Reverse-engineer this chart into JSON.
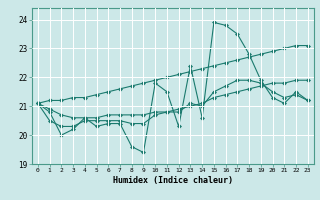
{
  "xlabel": "Humidex (Indice chaleur)",
  "bg_color": "#cce8e8",
  "grid_color": "#ffffff",
  "line_color": "#1a7a6e",
  "xlim": [
    -0.5,
    23.5
  ],
  "ylim": [
    19.0,
    24.4
  ],
  "yticks": [
    19,
    20,
    21,
    22,
    23,
    24
  ],
  "xticks": [
    0,
    1,
    2,
    3,
    4,
    5,
    6,
    7,
    8,
    9,
    10,
    11,
    12,
    13,
    14,
    15,
    16,
    17,
    18,
    19,
    20,
    21,
    22,
    23
  ],
  "series": [
    [
      21.1,
      20.8,
      20.0,
      20.2,
      20.6,
      20.3,
      20.4,
      20.4,
      19.6,
      19.4,
      21.8,
      21.5,
      20.3,
      22.4,
      20.6,
      23.9,
      23.8,
      23.5,
      22.8,
      21.9,
      21.3,
      21.1,
      21.5,
      21.2
    ],
    [
      21.1,
      20.5,
      20.3,
      20.3,
      20.5,
      20.5,
      20.5,
      20.5,
      20.4,
      20.4,
      20.7,
      20.8,
      20.8,
      21.1,
      21.0,
      21.5,
      21.7,
      21.9,
      21.9,
      21.8,
      21.5,
      21.3,
      21.4,
      21.2
    ],
    [
      21.1,
      20.9,
      20.7,
      20.6,
      20.6,
      20.6,
      20.7,
      20.7,
      20.7,
      20.7,
      20.8,
      20.8,
      20.9,
      21.0,
      21.1,
      21.3,
      21.4,
      21.5,
      21.6,
      21.7,
      21.8,
      21.8,
      21.9,
      21.9
    ],
    [
      21.1,
      21.2,
      21.2,
      21.3,
      21.3,
      21.4,
      21.5,
      21.6,
      21.7,
      21.8,
      21.9,
      22.0,
      22.1,
      22.2,
      22.3,
      22.4,
      22.5,
      22.6,
      22.7,
      22.8,
      22.9,
      23.0,
      23.1,
      23.1
    ]
  ]
}
